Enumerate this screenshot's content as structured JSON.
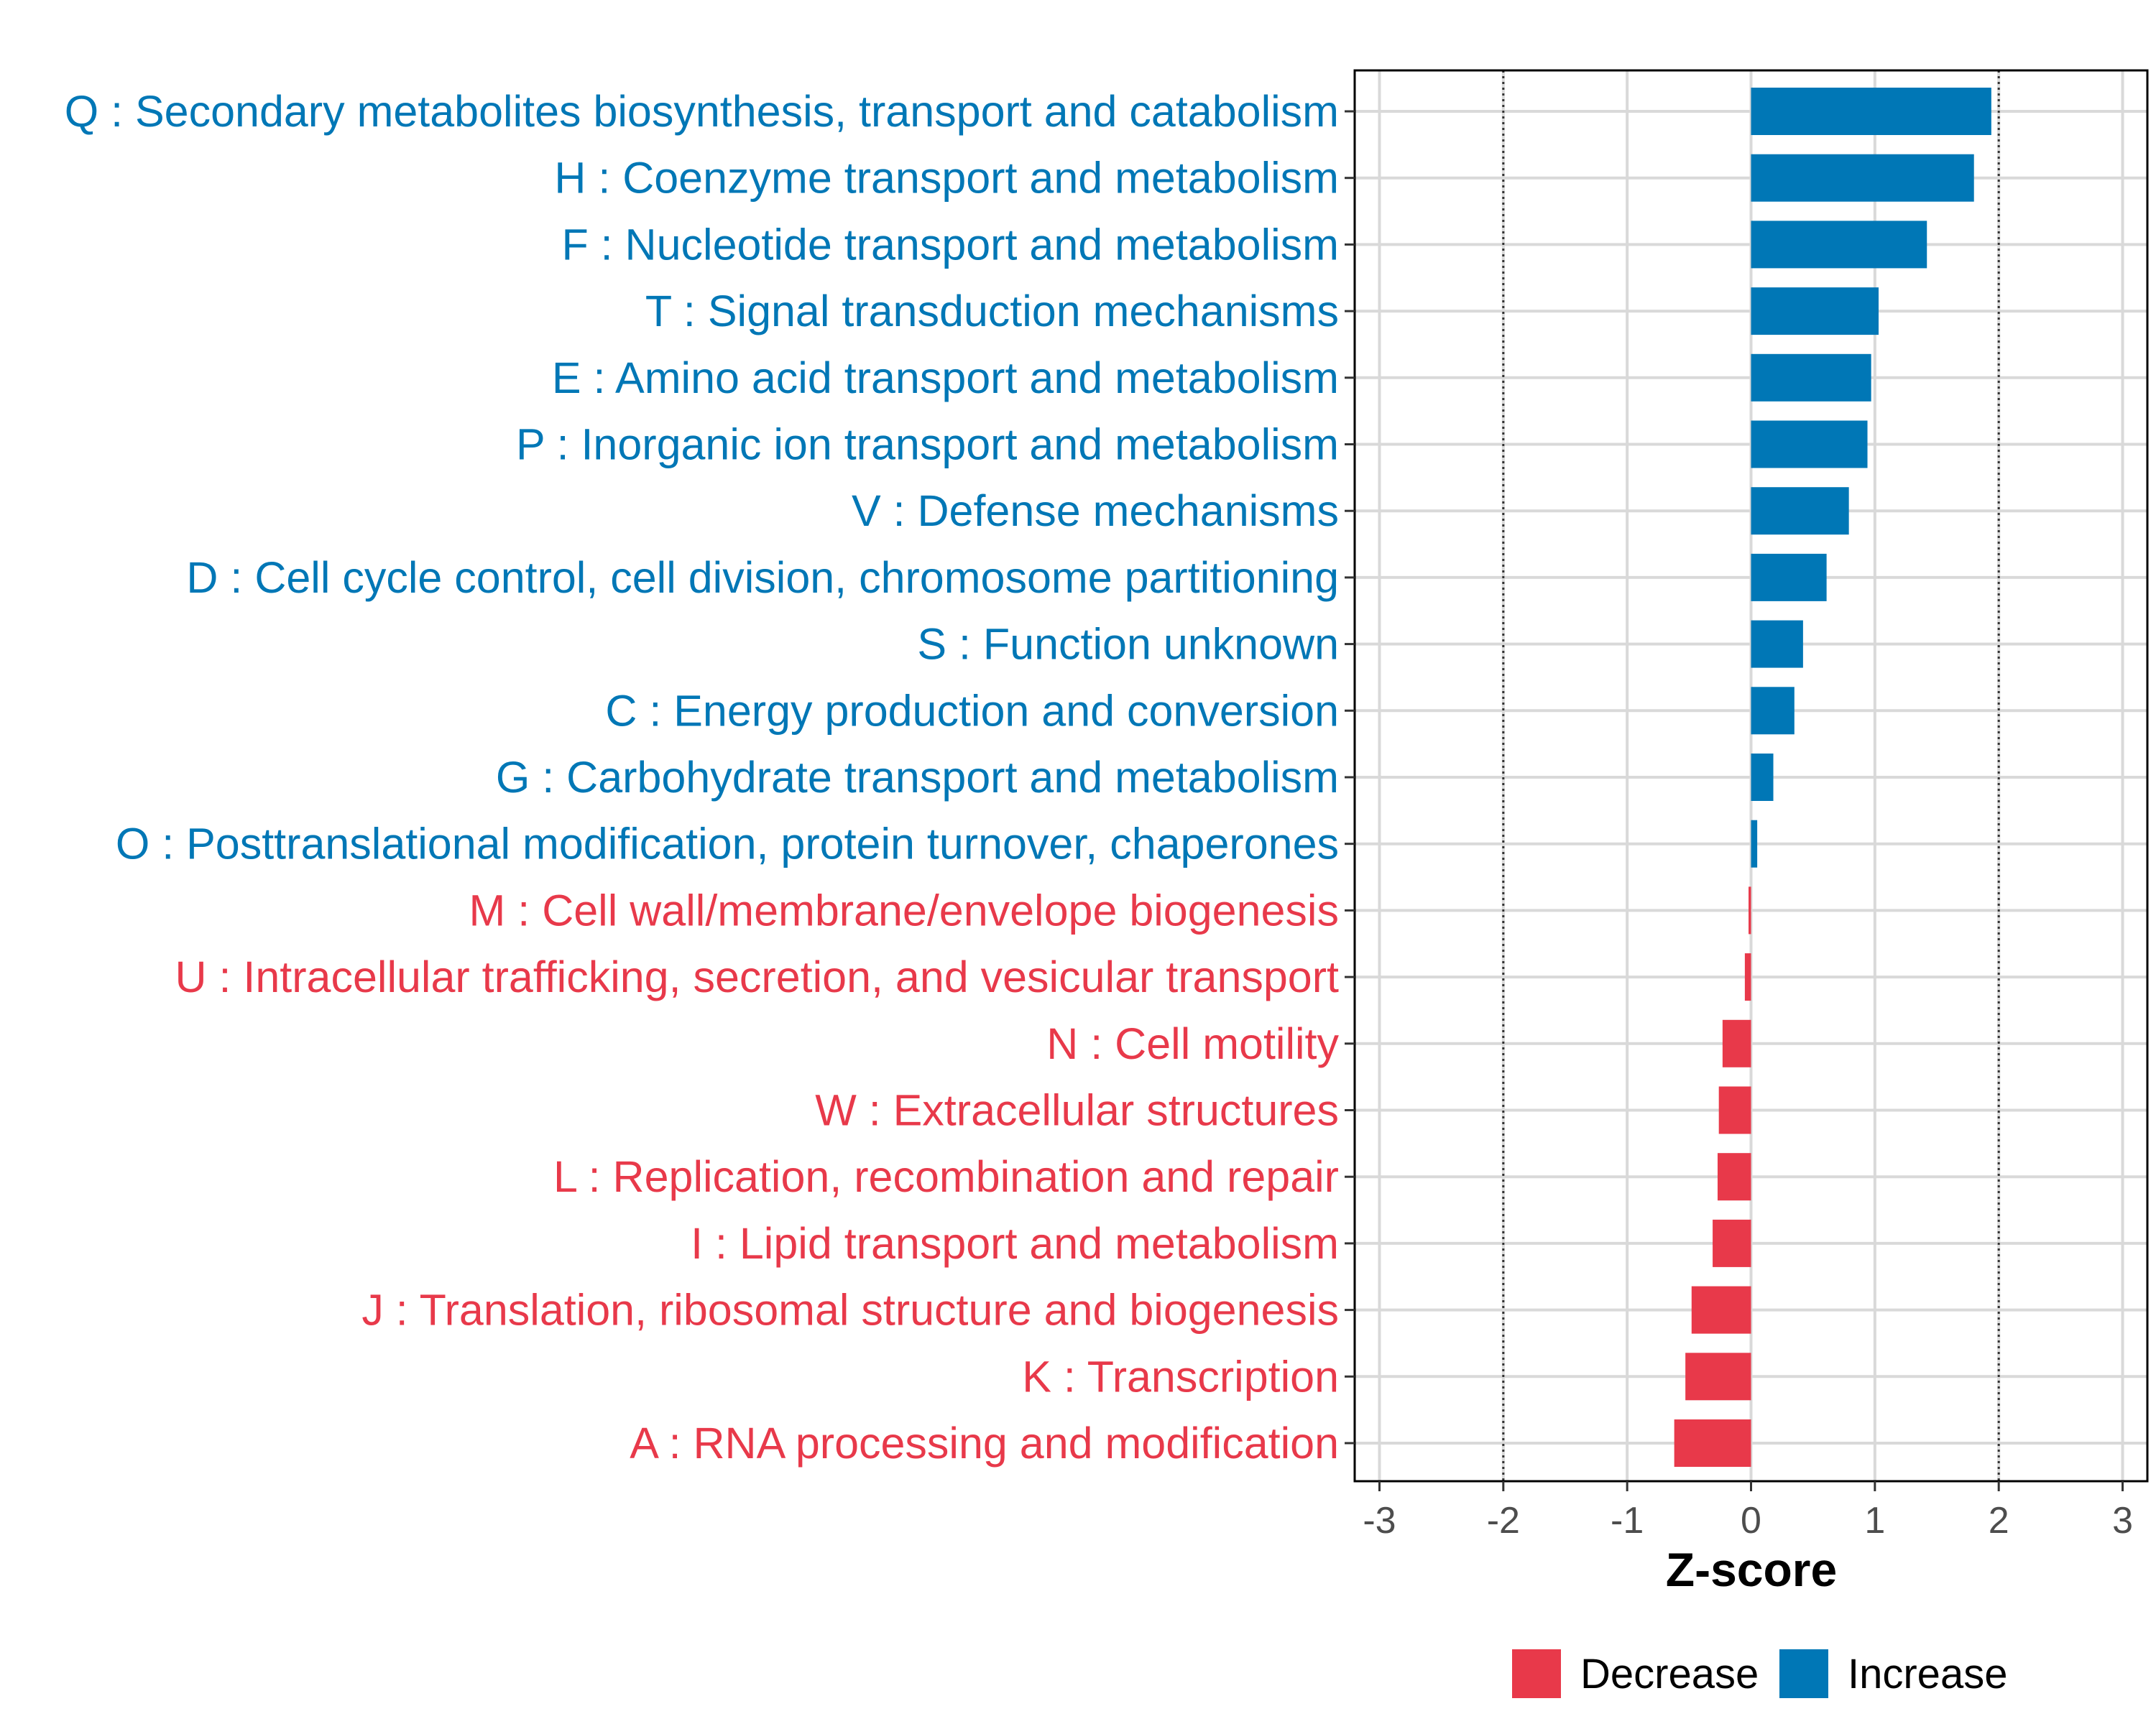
{
  "chart_data": {
    "type": "bar",
    "orientation": "horizontal",
    "title": "",
    "xlabel": "Z-score",
    "ylabel": "",
    "xlim": [
      -3.2,
      3.2
    ],
    "xticks": [
      -3,
      -2,
      -1,
      0,
      1,
      2,
      3
    ],
    "xtick_labels": [
      "-3",
      "-2",
      "-1",
      "0",
      "1",
      "2",
      "3"
    ],
    "reference_lines": [
      -2,
      2
    ],
    "grid": true,
    "legend_position": "bottom",
    "categories": [
      "Q : Secondary metabolites biosynthesis, transport and catabolism",
      "H : Coenzyme transport and metabolism",
      "F : Nucleotide transport and metabolism",
      "T : Signal transduction mechanisms",
      "E : Amino acid transport and metabolism",
      "P : Inorganic ion transport and metabolism",
      "V : Defense mechanisms",
      "D : Cell cycle control, cell division, chromosome partitioning",
      "S : Function unknown",
      "C : Energy production and conversion",
      "G : Carbohydrate transport and metabolism",
      "O : Posttranslational modification, protein turnover, chaperones",
      "M : Cell wall/membrane/envelope biogenesis",
      "U : Intracellular trafficking, secretion, and vesicular transport",
      "N : Cell motility",
      "W : Extracellular structures",
      "L : Replication, recombination and repair",
      "I : Lipid transport and metabolism",
      "J : Translation, ribosomal structure and biogenesis",
      "K : Transcription",
      "A : RNA processing and modification"
    ],
    "values": [
      1.94,
      1.8,
      1.42,
      1.03,
      0.97,
      0.94,
      0.79,
      0.61,
      0.42,
      0.35,
      0.18,
      0.05,
      -0.02,
      -0.05,
      -0.23,
      -0.26,
      -0.27,
      -0.31,
      -0.48,
      -0.53,
      -0.62
    ],
    "groups": [
      "Increase",
      "Increase",
      "Increase",
      "Increase",
      "Increase",
      "Increase",
      "Increase",
      "Increase",
      "Increase",
      "Increase",
      "Increase",
      "Increase",
      "Decrease",
      "Decrease",
      "Decrease",
      "Decrease",
      "Decrease",
      "Decrease",
      "Decrease",
      "Decrease",
      "Decrease"
    ],
    "legend": [
      {
        "name": "Decrease",
        "color": "#e8394a"
      },
      {
        "name": "Increase",
        "color": "#0077b6"
      }
    ]
  },
  "colors": {
    "increase": "#0077b6",
    "decrease": "#e8394a",
    "grid": "#d9d9d9",
    "panel_border": "#000000"
  }
}
